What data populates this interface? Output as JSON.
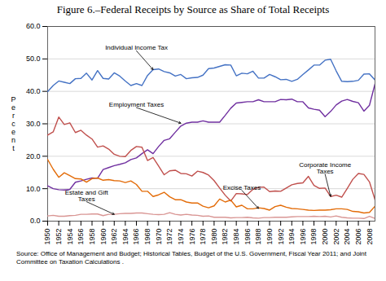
{
  "chart_data": {
    "type": "line",
    "title": "Figure 6.–Federal Receipts by Source as Share of Total Receipts",
    "ylabel": "P\ne\nr\nc\ne\nn\nt",
    "source": "Source:  Office of Management and Budget; Historical Tables, Budget of the  U.S. Government,  Fiscal Year 2011; and Joint Committee on Taxation Calculations .",
    "x": [
      1950,
      1951,
      1952,
      1953,
      1954,
      1955,
      1956,
      1957,
      1958,
      1959,
      1960,
      1961,
      1962,
      1963,
      1964,
      1965,
      1966,
      1967,
      1968,
      1969,
      1970,
      1971,
      1972,
      1973,
      1974,
      1975,
      1976,
      1977,
      1978,
      1979,
      1980,
      1981,
      1982,
      1983,
      1984,
      1985,
      1986,
      1987,
      1988,
      1989,
      1990,
      1991,
      1992,
      1993,
      1994,
      1995,
      1996,
      1997,
      1998,
      1999,
      2000,
      2001,
      2002,
      2003,
      2004,
      2005,
      2006,
      2007,
      2008,
      2009
    ],
    "series": [
      {
        "color": "#4472c4",
        "values": [
          39.9,
          41.8,
          43.2,
          42.8,
          42.4,
          43.9,
          44.0,
          45.6,
          43.5,
          46.4,
          44.0,
          43.8,
          45.7,
          44.7,
          43.2,
          41.8,
          42.4,
          41.8,
          44.9,
          46.7,
          46.9,
          46.1,
          45.7,
          44.7,
          45.2,
          43.9,
          44.2,
          44.3,
          45.0,
          47.0,
          47.2,
          47.7,
          48.2,
          48.1,
          44.8,
          45.6,
          45.4,
          46.2,
          44.1,
          44.1,
          45.2,
          44.5,
          43.6,
          43.7,
          43.1,
          43.7,
          45.2,
          46.6,
          48.1,
          48.1,
          49.6,
          49.9,
          46.3,
          43.1,
          43.0,
          43.1,
          43.4,
          45.3,
          45.4,
          43.5
        ]
      },
      {
        "color": "#7030a0",
        "values": [
          10.9,
          10.0,
          9.7,
          9.6,
          9.8,
          12.0,
          12.4,
          12.9,
          13.3,
          13.2,
          15.9,
          16.5,
          17.1,
          17.5,
          18.0,
          19.0,
          19.5,
          20.8,
          22.0,
          20.8,
          23.0,
          24.9,
          25.4,
          27.4,
          29.3,
          30.2,
          30.5,
          30.5,
          30.9,
          30.5,
          30.5,
          30.5,
          32.6,
          34.8,
          36.4,
          36.6,
          36.8,
          36.8,
          37.4,
          36.8,
          36.8,
          36.8,
          37.5,
          37.4,
          37.6,
          36.8,
          36.8,
          34.9,
          34.5,
          34.2,
          32.2,
          33.8,
          35.8,
          37.0,
          37.5,
          36.9,
          36.5,
          33.9,
          35.7,
          42.3
        ]
      },
      {
        "color": "#c0504d",
        "values": [
          26.5,
          27.5,
          32.1,
          29.8,
          30.3,
          27.3,
          28.0,
          26.5,
          25.3,
          22.8,
          23.2,
          22.2,
          20.6,
          20.0,
          19.9,
          21.8,
          23.0,
          22.8,
          18.7,
          19.6,
          17.0,
          14.3,
          15.5,
          15.7,
          14.7,
          14.6,
          13.9,
          15.4,
          15.0,
          14.2,
          12.5,
          10.2,
          8.0,
          6.2,
          8.5,
          8.4,
          8.2,
          9.8,
          10.4,
          10.5,
          9.1,
          9.3,
          9.2,
          10.2,
          11.2,
          11.6,
          11.8,
          13.8,
          11.0,
          10.1,
          10.2,
          7.6,
          8.0,
          7.4,
          10.1,
          12.9,
          14.7,
          14.4,
          12.1,
          6.6
        ]
      },
      {
        "color": "#e36c09",
        "values": [
          19.0,
          16.0,
          13.5,
          14.9,
          14.0,
          13.1,
          13.0,
          12.0,
          13.1,
          13.3,
          12.6,
          12.8,
          12.5,
          12.4,
          11.9,
          12.4,
          11.3,
          9.2,
          9.2,
          7.6,
          8.1,
          8.9,
          7.5,
          6.6,
          6.6,
          5.9,
          5.6,
          5.6,
          4.6,
          4.1,
          4.7,
          6.8,
          5.9,
          6.5,
          4.4,
          4.9,
          3.8,
          3.8,
          4.1,
          3.9,
          3.4,
          4.5,
          4.9,
          4.3,
          3.9,
          3.8,
          3.6,
          3.4,
          3.3,
          3.4,
          3.4,
          3.5,
          3.8,
          3.8,
          3.6,
          3.0,
          2.9,
          2.5,
          2.7,
          4.6
        ]
      },
      {
        "color": "#d99694",
        "values": [
          1.6,
          1.8,
          1.5,
          1.5,
          1.7,
          1.8,
          2.1,
          2.1,
          2.2,
          2.2,
          1.7,
          2.1,
          2.1,
          2.3,
          2.4,
          2.4,
          2.5,
          2.5,
          2.3,
          2.1,
          2.0,
          2.1,
          2.6,
          2.1,
          1.9,
          2.1,
          1.9,
          1.8,
          1.5,
          1.6,
          1.2,
          1.2,
          1.2,
          1.0,
          1.1,
          1.1,
          1.2,
          1.0,
          0.9,
          1.1,
          1.1,
          1.2,
          1.2,
          1.2,
          1.3,
          1.4,
          1.4,
          1.4,
          1.5,
          1.4,
          1.5,
          1.3,
          1.6,
          1.2,
          1.0,
          0.9,
          0.9,
          0.8,
          1.5,
          0.8
        ]
      }
    ],
    "xlim": [
      1950,
      2009
    ],
    "xticks": [
      1950,
      1952,
      1954,
      1956,
      1958,
      1960,
      1962,
      1964,
      1966,
      1968,
      1970,
      1972,
      1974,
      1976,
      1978,
      1980,
      1982,
      1984,
      1986,
      1988,
      1990,
      1992,
      1994,
      1996,
      1998,
      2000,
      2002,
      2004,
      2006,
      2008
    ],
    "ylim": [
      0,
      60
    ],
    "yticks": [
      {
        "value": 0,
        "label": "0.0"
      },
      {
        "value": 10,
        "label": "10.0"
      },
      {
        "value": 20,
        "label": "20.0"
      },
      {
        "value": 30,
        "label": "30.0"
      },
      {
        "value": 40,
        "label": "40.0"
      },
      {
        "value": 50,
        "label": "50.0"
      },
      {
        "value": 60,
        "label": "60.0"
      }
    ],
    "grid": "y",
    "annotations": [
      {
        "text": "Individual Income Tax",
        "xy": [
          1969,
          46.7
        ],
        "xytext": [
          1966,
          52.5
        ]
      },
      {
        "text": "Employment Taxes",
        "xy": [
          1974,
          30.2
        ],
        "xytext": [
          1966,
          35.0
        ]
      },
      {
        "text": "Corporate Income\nTaxes",
        "xy": [
          2001,
          7.6
        ],
        "xytext": [
          2000,
          14.5
        ]
      },
      {
        "text": "Excise Taxes",
        "xy": [
          1988,
          3.9
        ],
        "xytext": [
          1985,
          9.5
        ]
      },
      {
        "text": "Estate and Gift\nTaxes",
        "xy": [
          1962,
          2.1
        ],
        "xytext": [
          1957,
          6.0
        ]
      }
    ]
  }
}
